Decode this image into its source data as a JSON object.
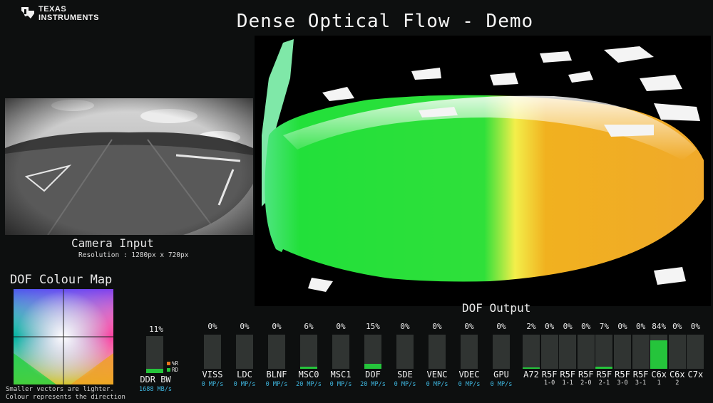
{
  "title": "Dense Optical Flow - Demo",
  "logo": {
    "line1": "TEXAS",
    "line2": "INSTRUMENTS"
  },
  "camera": {
    "label": "Camera Input",
    "resolution": "Resolution : 1280px x 720px"
  },
  "colour_map": {
    "title": "DOF Colour Map",
    "note_line1": "Smaller vectors are lighter.",
    "note_line2": "Colour represents the direction"
  },
  "dof_output_label": "DOF Output",
  "ddr": {
    "percent": "11%",
    "label": "DDR BW",
    "rate": "1688 MB/s",
    "legend_wr": "%R",
    "legend_rd": "RD",
    "fill": 0.11
  },
  "accelerators": [
    {
      "percent": "0%",
      "label": "VISS",
      "rate": "0 MP/s",
      "fill": 0
    },
    {
      "percent": "0%",
      "label": "LDC",
      "rate": "0 MP/s",
      "fill": 0
    },
    {
      "percent": "0%",
      "label": "BLNF",
      "rate": "0 MP/s",
      "fill": 0
    },
    {
      "percent": "6%",
      "label": "MSC0",
      "rate": "20 MP/s",
      "fill": 0.06
    },
    {
      "percent": "0%",
      "label": "MSC1",
      "rate": "0 MP/s",
      "fill": 0
    },
    {
      "percent": "15%",
      "label": "DOF",
      "rate": "20 MP/s",
      "fill": 0.15
    },
    {
      "percent": "0%",
      "label": "SDE",
      "rate": "0 MP/s",
      "fill": 0
    },
    {
      "percent": "0%",
      "label": "VENC",
      "rate": "0 MP/s",
      "fill": 0
    },
    {
      "percent": "0%",
      "label": "VDEC",
      "rate": "0 MP/s",
      "fill": 0
    },
    {
      "percent": "0%",
      "label": "GPU",
      "rate": "0 MP/s",
      "fill": 0
    }
  ],
  "cores": [
    {
      "percent": "2%",
      "label": "A72",
      "sub": "",
      "fill": 0.02
    },
    {
      "percent": "0%",
      "label": "R5F",
      "sub": "1-0",
      "fill": 0
    },
    {
      "percent": "0%",
      "label": "R5F",
      "sub": "1-1",
      "fill": 0
    },
    {
      "percent": "0%",
      "label": "R5F",
      "sub": "2-0",
      "fill": 0
    },
    {
      "percent": "7%",
      "label": "R5F",
      "sub": "2-1",
      "fill": 0.07
    },
    {
      "percent": "0%",
      "label": "R5F",
      "sub": "3-0",
      "fill": 0
    },
    {
      "percent": "0%",
      "label": "R5F",
      "sub": "3-1",
      "fill": 0
    },
    {
      "percent": "84%",
      "label": "C6x",
      "sub": "1",
      "fill": 0.84
    },
    {
      "percent": "0%",
      "label": "C6x",
      "sub": "2",
      "fill": 0
    },
    {
      "percent": "0%",
      "label": "C7x",
      "sub": "",
      "fill": 0
    }
  ],
  "colors": {
    "bar_fill": "#25c43b",
    "rate_text": "#3fb8e2",
    "legend_wr": "#e8741c",
    "legend_rd": "#25c43b"
  }
}
